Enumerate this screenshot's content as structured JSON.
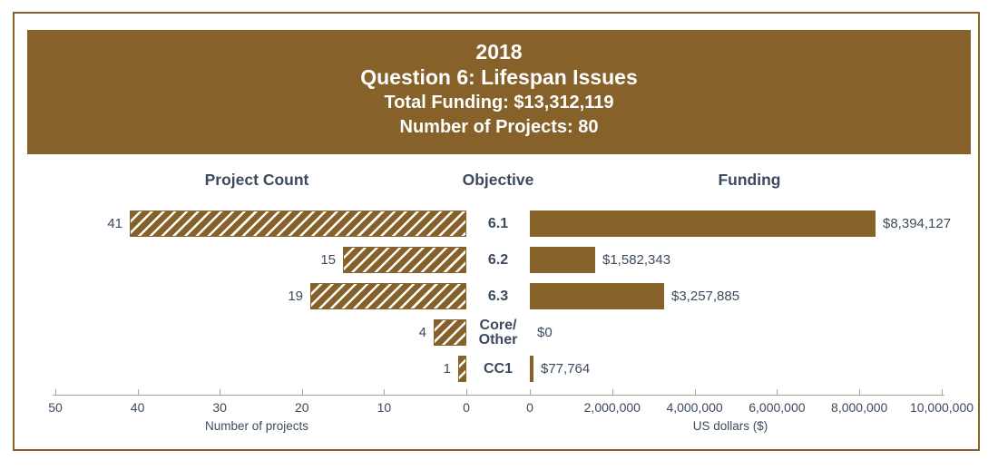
{
  "header": {
    "year": "2018",
    "title": "Question 6: Lifespan Issues",
    "total_funding": "Total Funding: $13,312,119",
    "num_projects": "Number of Projects: 80",
    "band_color": "#86612a",
    "text_color": "#ffffff"
  },
  "columns": {
    "left": "Project Count",
    "center": "Objective",
    "right": "Funding"
  },
  "chart_data": {
    "type": "bar",
    "orientation": "horizontal-tornado",
    "categories": [
      "6.1",
      "6.2",
      "6.3",
      "Core/Other",
      "CC1"
    ],
    "display_categories": [
      "6.1",
      "6.2",
      "6.3",
      "Core/\nOther",
      "CC1"
    ],
    "series": [
      {
        "name": "Project Count",
        "side": "left",
        "style": "hatched",
        "values": [
          41,
          15,
          19,
          4,
          1
        ],
        "labels": [
          "41",
          "15",
          "19",
          "4",
          "1"
        ],
        "axis": {
          "title": "Number of projects",
          "range": [
            0,
            50
          ],
          "ticks": [
            50,
            40,
            30,
            20,
            10,
            0
          ],
          "tick_labels": [
            "50",
            "40",
            "30",
            "20",
            "10",
            "0"
          ],
          "direction": "right-to-left"
        }
      },
      {
        "name": "Funding",
        "side": "right",
        "style": "solid",
        "values": [
          8394127,
          1582343,
          3257885,
          0,
          77764
        ],
        "labels": [
          "$8,394,127",
          "$1,582,343",
          "$3,257,885",
          "$0",
          "$77,764"
        ],
        "axis": {
          "title": "US dollars ($)",
          "range": [
            0,
            10000000
          ],
          "ticks": [
            0,
            2000000,
            4000000,
            6000000,
            8000000,
            10000000
          ],
          "tick_labels": [
            "0",
            "2,000,000",
            "4,000,000",
            "6,000,000",
            "8,000,000",
            "10,000,000"
          ],
          "direction": "left-to-right"
        }
      }
    ],
    "legend": null,
    "grid": false
  },
  "colors": {
    "bar_brown": "#86612a",
    "label_navy": "#3c4a5e",
    "axis_gray": "#a4a4a4",
    "frame_border": "#8a6228",
    "hatch_stripe": "#ffffff"
  }
}
